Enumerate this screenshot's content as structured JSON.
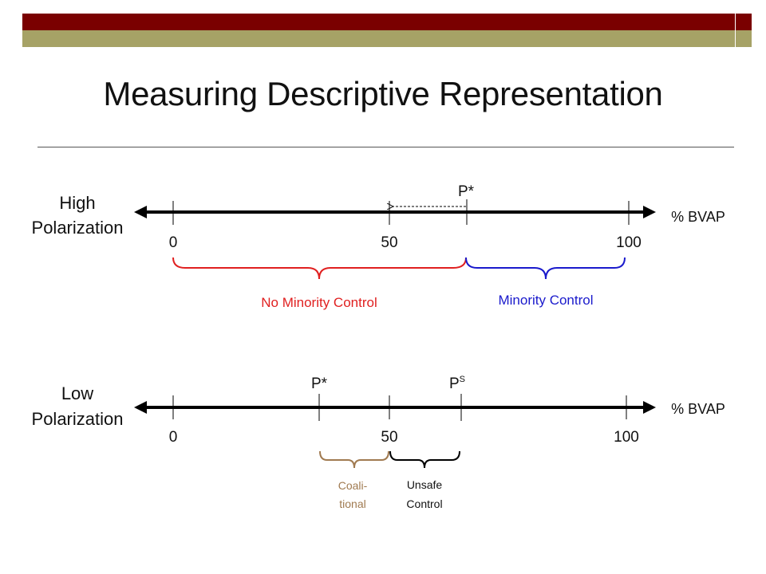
{
  "title": "Measuring Descriptive Representation",
  "colors": {
    "maroon": "#7a0000",
    "olive": "#a6a266",
    "red": "#e02020",
    "blue": "#1a1acc",
    "brown": "#a07a50"
  },
  "high": {
    "label_line1": "High",
    "label_line2": "Polarization",
    "axis_label": "% BVAP",
    "ticks": [
      "0",
      "50",
      "100"
    ],
    "p_star": "P*",
    "brace_left_label": "No Minority Control",
    "brace_right_label": "Minority Control"
  },
  "low": {
    "label_line1": "Low",
    "label_line2": "Polarization",
    "axis_label": "% BVAP",
    "ticks": [
      "0",
      "50",
      "100"
    ],
    "p_star": "P*",
    "p_s_main": "P",
    "p_s_sup": "S",
    "coalitional_line1": "Coali-",
    "coalitional_line2": "tional",
    "unsafe_line1": "Unsafe",
    "unsafe_line2": "Control"
  }
}
